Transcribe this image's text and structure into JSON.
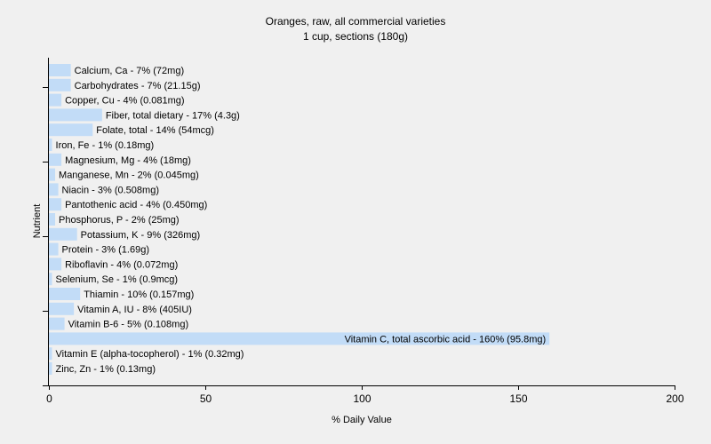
{
  "colors": {
    "background": "#f0f0f0",
    "bar": "#c2dcf7",
    "axis": "#000000",
    "text": "#000000"
  },
  "chart_data": {
    "type": "bar",
    "orientation": "horizontal",
    "title": "Oranges, raw, all commercial varieties",
    "subtitle": "1 cup, sections (180g)",
    "xlabel": "% Daily Value",
    "ylabel": "Nutrient",
    "xlim": [
      0,
      200
    ],
    "xticks": [
      0,
      50,
      100,
      150,
      200
    ],
    "grid": false,
    "legend": "none",
    "bars": [
      {
        "label": "Calcium, Ca - 7% (72mg)",
        "value": 7
      },
      {
        "label": "Carbohydrates - 7% (21.15g)",
        "value": 7
      },
      {
        "label": "Copper, Cu - 4% (0.081mg)",
        "value": 4
      },
      {
        "label": "Fiber, total dietary - 17% (4.3g)",
        "value": 17
      },
      {
        "label": "Folate, total - 14% (54mcg)",
        "value": 14
      },
      {
        "label": "Iron, Fe - 1% (0.18mg)",
        "value": 1
      },
      {
        "label": "Magnesium, Mg - 4% (18mg)",
        "value": 4
      },
      {
        "label": "Manganese, Mn - 2% (0.045mg)",
        "value": 2
      },
      {
        "label": "Niacin - 3% (0.508mg)",
        "value": 3
      },
      {
        "label": "Pantothenic acid - 4% (0.450mg)",
        "value": 4
      },
      {
        "label": "Phosphorus, P - 2% (25mg)",
        "value": 2
      },
      {
        "label": "Potassium, K - 9% (326mg)",
        "value": 9
      },
      {
        "label": "Protein - 3% (1.69g)",
        "value": 3
      },
      {
        "label": "Riboflavin - 4% (0.072mg)",
        "value": 4
      },
      {
        "label": "Selenium, Se - 1% (0.9mcg)",
        "value": 1
      },
      {
        "label": "Thiamin - 10% (0.157mg)",
        "value": 10
      },
      {
        "label": "Vitamin A, IU - 8% (405IU)",
        "value": 8
      },
      {
        "label": "Vitamin B-6 - 5% (0.108mg)",
        "value": 5
      },
      {
        "label": "Vitamin C, total ascorbic acid - 160% (95.8mg)",
        "value": 160
      },
      {
        "label": "Vitamin E (alpha-tocopherol) - 1% (0.32mg)",
        "value": 1
      },
      {
        "label": "Zinc, Zn - 1% (0.13mg)",
        "value": 1
      }
    ]
  }
}
